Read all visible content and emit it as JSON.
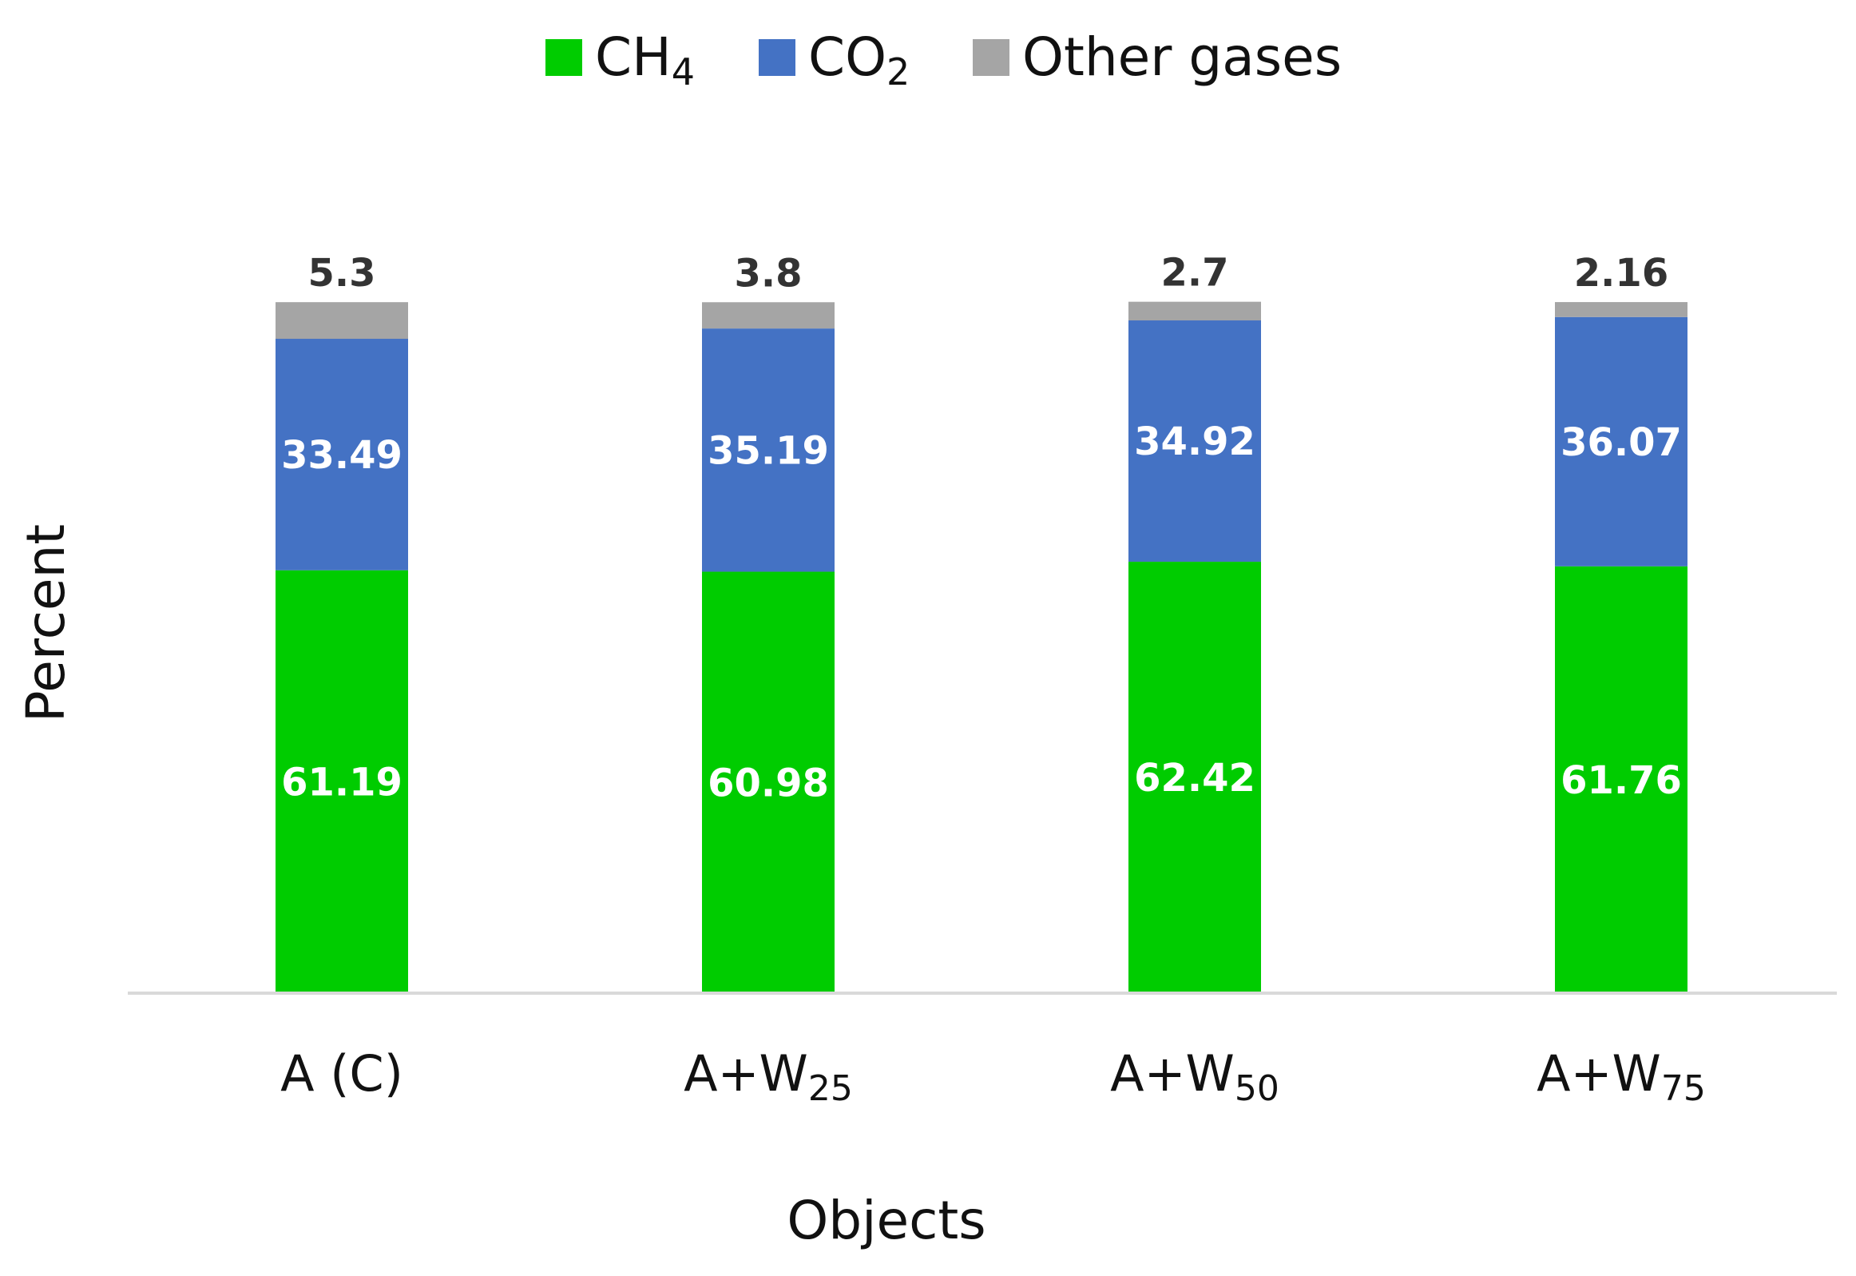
{
  "chart_data": {
    "type": "bar",
    "stacked": true,
    "xlabel": "Objects",
    "ylabel": "Percent",
    "ylim": [
      0,
      100
    ],
    "grid": false,
    "legend_position": "top",
    "categories": [
      {
        "base": "A (C)",
        "sub": ""
      },
      {
        "base": "A+W",
        "sub": "25"
      },
      {
        "base": "A+W",
        "sub": "50"
      },
      {
        "base": "A+W",
        "sub": "75"
      }
    ],
    "series": [
      {
        "name": {
          "base": "CH",
          "sub": "4"
        },
        "color": "#00CC00",
        "values": [
          61.19,
          60.98,
          62.42,
          61.76
        ],
        "label_color": "#ffffff"
      },
      {
        "name": {
          "base": "CO",
          "sub": "2"
        },
        "color": "#4472C4",
        "values": [
          33.49,
          35.19,
          34.92,
          36.07
        ],
        "label_color": "#ffffff"
      },
      {
        "name": {
          "base": "Other gases",
          "sub": ""
        },
        "color": "#A5A5A5",
        "values": [
          5.3,
          3.8,
          2.7,
          2.16
        ],
        "label_color": "#333333",
        "label_outside": true
      }
    ],
    "value_labels": {
      "0": [
        "61.19",
        "60.98",
        "62.42",
        "61.76"
      ],
      "1": [
        "33.49",
        "35.19",
        "34.92",
        "36.07"
      ],
      "2": [
        "5.3",
        "3.8",
        "2.7",
        "2.16"
      ]
    }
  }
}
